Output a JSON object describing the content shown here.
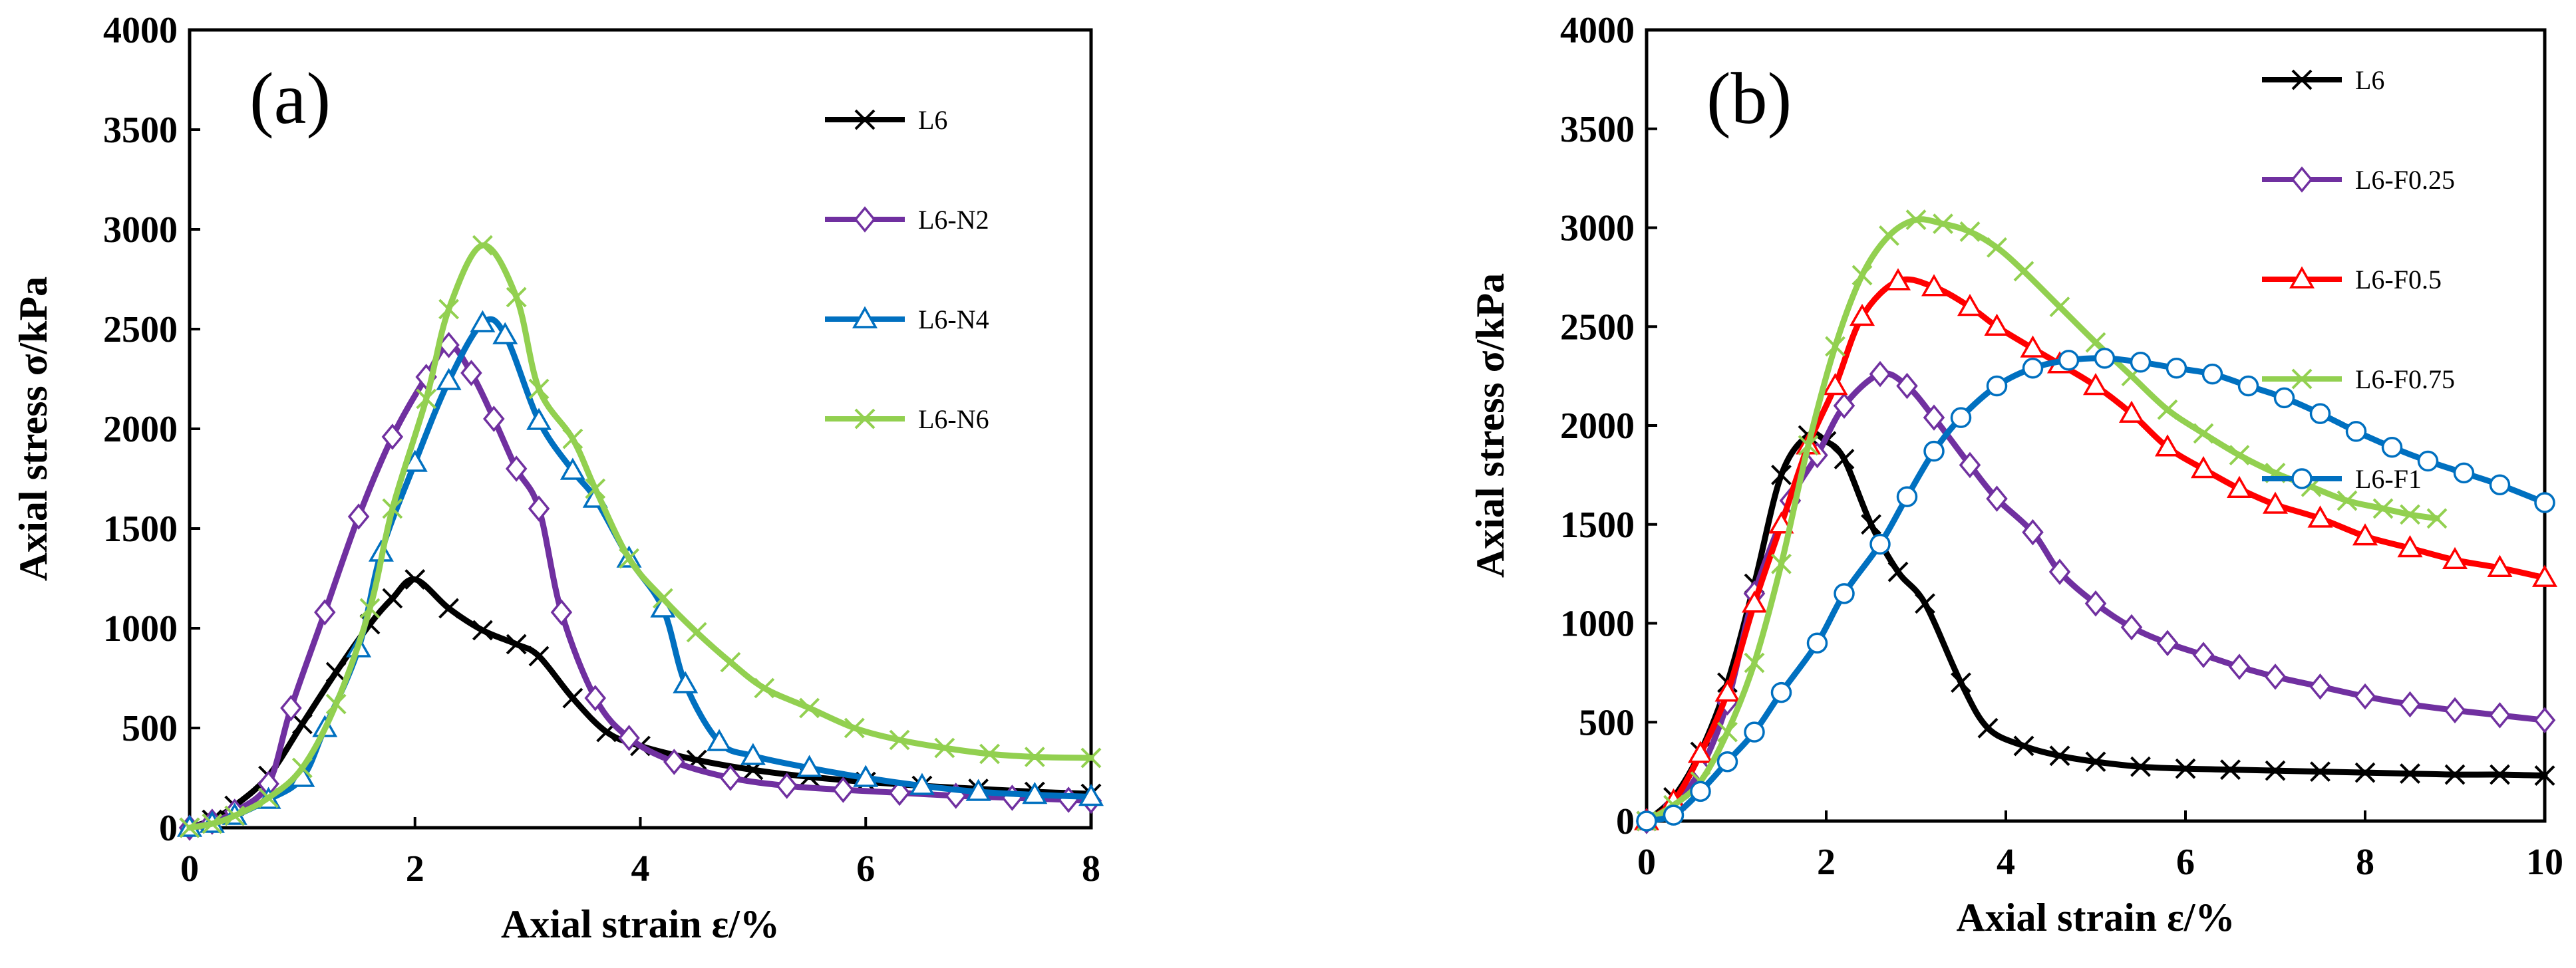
{
  "chart_data": [
    {
      "type": "line",
      "panel_label": "(a)",
      "xlabel": "Axial strain ε/%",
      "ylabel": "Axial stress σ/kPa",
      "xlim": [
        0,
        8
      ],
      "ylim": [
        0,
        4000
      ],
      "xticks": [
        0,
        2,
        4,
        6,
        8
      ],
      "yticks": [
        0,
        500,
        1000,
        1500,
        2000,
        2500,
        3000,
        3500,
        4000
      ],
      "legend_position": "top-right",
      "series": [
        {
          "name": "L6",
          "color": "#000000",
          "marker": "x",
          "points": [
            [
              0,
              0
            ],
            [
              0.2,
              40
            ],
            [
              0.4,
              110
            ],
            [
              0.7,
              260
            ],
            [
              1.0,
              520
            ],
            [
              1.3,
              780
            ],
            [
              1.6,
              1020
            ],
            [
              1.8,
              1150
            ],
            [
              2.0,
              1245
            ],
            [
              2.3,
              1100
            ],
            [
              2.6,
              990
            ],
            [
              2.9,
              920
            ],
            [
              3.1,
              860
            ],
            [
              3.4,
              650
            ],
            [
              3.7,
              480
            ],
            [
              4.0,
              410
            ],
            [
              4.5,
              340
            ],
            [
              5.0,
              290
            ],
            [
              5.5,
              255
            ],
            [
              6.0,
              230
            ],
            [
              6.5,
              210
            ],
            [
              7.0,
              195
            ],
            [
              7.5,
              180
            ],
            [
              8.0,
              170
            ]
          ]
        },
        {
          "name": "L6-N2",
          "color": "#7030A0",
          "marker": "diamond",
          "points": [
            [
              0,
              0
            ],
            [
              0.2,
              30
            ],
            [
              0.4,
              80
            ],
            [
              0.7,
              220
            ],
            [
              0.9,
              600
            ],
            [
              1.2,
              1080
            ],
            [
              1.5,
              1560
            ],
            [
              1.8,
              1960
            ],
            [
              2.1,
              2260
            ],
            [
              2.3,
              2420
            ],
            [
              2.5,
              2280
            ],
            [
              2.7,
              2050
            ],
            [
              2.9,
              1800
            ],
            [
              3.1,
              1600
            ],
            [
              3.3,
              1080
            ],
            [
              3.6,
              650
            ],
            [
              3.9,
              450
            ],
            [
              4.3,
              330
            ],
            [
              4.8,
              250
            ],
            [
              5.3,
              210
            ],
            [
              5.8,
              190
            ],
            [
              6.3,
              175
            ],
            [
              6.8,
              160
            ],
            [
              7.3,
              150
            ],
            [
              7.8,
              140
            ],
            [
              8.0,
              135
            ]
          ]
        },
        {
          "name": "L6-N4",
          "color": "#0070C0",
          "marker": "triangle",
          "points": [
            [
              0,
              0
            ],
            [
              0.2,
              20
            ],
            [
              0.4,
              60
            ],
            [
              0.7,
              140
            ],
            [
              1.0,
              250
            ],
            [
              1.2,
              500
            ],
            [
              1.5,
              900
            ],
            [
              1.7,
              1380
            ],
            [
              2.0,
              1830
            ],
            [
              2.3,
              2240
            ],
            [
              2.6,
              2530
            ],
            [
              2.8,
              2470
            ],
            [
              3.1,
              2040
            ],
            [
              3.4,
              1790
            ],
            [
              3.6,
              1650
            ],
            [
              3.9,
              1350
            ],
            [
              4.2,
              1100
            ],
            [
              4.4,
              720
            ],
            [
              4.7,
              430
            ],
            [
              5.0,
              360
            ],
            [
              5.5,
              300
            ],
            [
              6.0,
              250
            ],
            [
              6.5,
              210
            ],
            [
              7.0,
              180
            ],
            [
              7.5,
              165
            ],
            [
              8.0,
              155
            ]
          ]
        },
        {
          "name": "L6-N6",
          "color": "#92D050",
          "marker": "x",
          "points": [
            [
              0,
              0
            ],
            [
              0.2,
              20
            ],
            [
              0.4,
              60
            ],
            [
              0.7,
              150
            ],
            [
              1.0,
              300
            ],
            [
              1.3,
              620
            ],
            [
              1.6,
              1100
            ],
            [
              1.8,
              1600
            ],
            [
              2.1,
              2150
            ],
            [
              2.3,
              2600
            ],
            [
              2.6,
              2920
            ],
            [
              2.9,
              2660
            ],
            [
              3.1,
              2200
            ],
            [
              3.4,
              1950
            ],
            [
              3.6,
              1700
            ],
            [
              3.9,
              1350
            ],
            [
              4.2,
              1150
            ],
            [
              4.5,
              980
            ],
            [
              4.8,
              830
            ],
            [
              5.1,
              700
            ],
            [
              5.5,
              600
            ],
            [
              5.9,
              500
            ],
            [
              6.3,
              440
            ],
            [
              6.7,
              400
            ],
            [
              7.1,
              370
            ],
            [
              7.5,
              355
            ],
            [
              8.0,
              350
            ]
          ]
        }
      ]
    },
    {
      "type": "line",
      "panel_label": "(b)",
      "xlabel": "Axial strain ε/%",
      "ylabel": "Axial stress σ/kPa",
      "xlim": [
        0,
        10
      ],
      "ylim": [
        0,
        4000
      ],
      "xticks": [
        0,
        2,
        4,
        6,
        8,
        10
      ],
      "yticks": [
        0,
        500,
        1000,
        1500,
        2000,
        2500,
        3000,
        3500,
        4000
      ],
      "legend_position": "top-right",
      "series": [
        {
          "name": "L6",
          "color": "#000000",
          "marker": "x",
          "points": [
            [
              0,
              0
            ],
            [
              0.3,
              120
            ],
            [
              0.6,
              350
            ],
            [
              0.9,
              700
            ],
            [
              1.2,
              1200
            ],
            [
              1.5,
              1750
            ],
            [
              1.8,
              1950
            ],
            [
              2.0,
              1920
            ],
            [
              2.2,
              1830
            ],
            [
              2.5,
              1500
            ],
            [
              2.8,
              1260
            ],
            [
              3.1,
              1100
            ],
            [
              3.5,
              700
            ],
            [
              3.8,
              470
            ],
            [
              4.2,
              380
            ],
            [
              4.6,
              330
            ],
            [
              5.0,
              300
            ],
            [
              5.5,
              275
            ],
            [
              6.0,
              265
            ],
            [
              6.5,
              260
            ],
            [
              7.0,
              255
            ],
            [
              7.5,
              250
            ],
            [
              8.0,
              245
            ],
            [
              8.5,
              240
            ],
            [
              9.0,
              235
            ],
            [
              9.5,
              235
            ],
            [
              10.0,
              230
            ]
          ]
        },
        {
          "name": "L6-F0.25",
          "color": "#7030A0",
          "marker": "diamond",
          "points": [
            [
              0,
              0
            ],
            [
              0.3,
              80
            ],
            [
              0.6,
              260
            ],
            [
              0.9,
              600
            ],
            [
              1.2,
              1150
            ],
            [
              1.6,
              1620
            ],
            [
              1.9,
              1850
            ],
            [
              2.2,
              2100
            ],
            [
              2.6,
              2260
            ],
            [
              2.9,
              2200
            ],
            [
              3.2,
              2040
            ],
            [
              3.6,
              1800
            ],
            [
              3.9,
              1630
            ],
            [
              4.3,
              1460
            ],
            [
              4.6,
              1260
            ],
            [
              5.0,
              1100
            ],
            [
              5.4,
              980
            ],
            [
              5.8,
              900
            ],
            [
              6.2,
              840
            ],
            [
              6.6,
              780
            ],
            [
              7.0,
              730
            ],
            [
              7.5,
              680
            ],
            [
              8.0,
              630
            ],
            [
              8.5,
              590
            ],
            [
              9.0,
              560
            ],
            [
              9.5,
              535
            ],
            [
              10.0,
              510
            ]
          ]
        },
        {
          "name": "L6-F0.5",
          "color": "#FF0000",
          "marker": "triangle",
          "points": [
            [
              0,
              0
            ],
            [
              0.3,
              100
            ],
            [
              0.6,
              340
            ],
            [
              0.9,
              650
            ],
            [
              1.2,
              1100
            ],
            [
              1.5,
              1500
            ],
            [
              1.8,
              1900
            ],
            [
              2.1,
              2200
            ],
            [
              2.4,
              2550
            ],
            [
              2.8,
              2730
            ],
            [
              3.2,
              2700
            ],
            [
              3.6,
              2600
            ],
            [
              3.9,
              2500
            ],
            [
              4.3,
              2390
            ],
            [
              4.6,
              2310
            ],
            [
              5.0,
              2200
            ],
            [
              5.4,
              2060
            ],
            [
              5.8,
              1890
            ],
            [
              6.2,
              1780
            ],
            [
              6.6,
              1680
            ],
            [
              7.0,
              1600
            ],
            [
              7.5,
              1530
            ],
            [
              8.0,
              1440
            ],
            [
              8.5,
              1380
            ],
            [
              9.0,
              1320
            ],
            [
              9.5,
              1280
            ],
            [
              10.0,
              1230
            ]
          ]
        },
        {
          "name": "L6-F0.75",
          "color": "#92D050",
          "marker": "x",
          "points": [
            [
              0,
              0
            ],
            [
              0.3,
              80
            ],
            [
              0.6,
              200
            ],
            [
              0.9,
              450
            ],
            [
              1.2,
              800
            ],
            [
              1.5,
              1300
            ],
            [
              1.8,
              1900
            ],
            [
              2.1,
              2400
            ],
            [
              2.4,
              2760
            ],
            [
              2.7,
              2960
            ],
            [
              3.0,
              3040
            ],
            [
              3.3,
              3020
            ],
            [
              3.6,
              2980
            ],
            [
              3.9,
              2900
            ],
            [
              4.2,
              2780
            ],
            [
              4.6,
              2600
            ],
            [
              5.0,
              2420
            ],
            [
              5.4,
              2250
            ],
            [
              5.8,
              2080
            ],
            [
              6.2,
              1960
            ],
            [
              6.6,
              1850
            ],
            [
              7.0,
              1760
            ],
            [
              7.4,
              1690
            ],
            [
              7.8,
              1620
            ],
            [
              8.2,
              1580
            ],
            [
              8.5,
              1550
            ],
            [
              8.8,
              1530
            ]
          ]
        },
        {
          "name": "L6-F1",
          "color": "#0070C0",
          "marker": "circle",
          "points": [
            [
              0,
              0
            ],
            [
              0.3,
              30
            ],
            [
              0.6,
              150
            ],
            [
              0.9,
              300
            ],
            [
              1.2,
              450
            ],
            [
              1.5,
              650
            ],
            [
              1.9,
              900
            ],
            [
              2.2,
              1150
            ],
            [
              2.6,
              1400
            ],
            [
              2.9,
              1640
            ],
            [
              3.2,
              1870
            ],
            [
              3.5,
              2040
            ],
            [
              3.9,
              2200
            ],
            [
              4.3,
              2290
            ],
            [
              4.7,
              2330
            ],
            [
              5.1,
              2340
            ],
            [
              5.5,
              2320
            ],
            [
              5.9,
              2290
            ],
            [
              6.3,
              2260
            ],
            [
              6.7,
              2200
            ],
            [
              7.1,
              2140
            ],
            [
              7.5,
              2060
            ],
            [
              7.9,
              1970
            ],
            [
              8.3,
              1890
            ],
            [
              8.7,
              1820
            ],
            [
              9.1,
              1760
            ],
            [
              9.5,
              1700
            ],
            [
              10.0,
              1610
            ]
          ]
        }
      ]
    }
  ]
}
